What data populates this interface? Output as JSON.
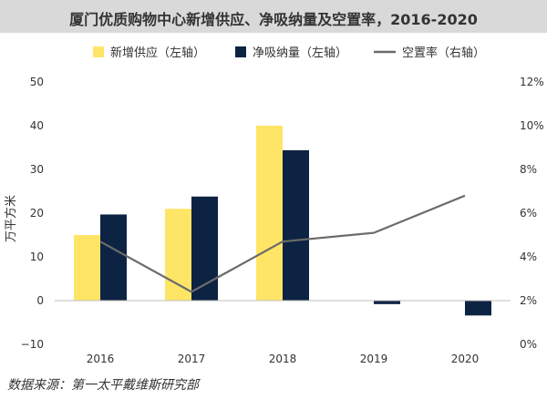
{
  "page": {
    "title": "厦门优质购物中心新增供应、净吸纳量及空置率，2016-2020",
    "source": "数据来源：第一太平戴维斯研究部"
  },
  "chart_data": {
    "type": "bar",
    "title": "厦门优质购物中心新增供应、净吸纳量及空置率，2016-2020",
    "categories": [
      "2016",
      "2017",
      "2018",
      "2019",
      "2020"
    ],
    "ylabel": "万平方米",
    "ylim": [
      -10,
      50
    ],
    "y_ticks": [
      "50",
      "40",
      "30",
      "20",
      "10",
      "0",
      "−10"
    ],
    "y2lim": [
      0,
      12
    ],
    "y2_ticks": [
      "12%",
      "10%",
      "8%",
      "6%",
      "4%",
      "2%",
      "0%"
    ],
    "grid": false,
    "legend_position": "top",
    "series": [
      {
        "name": "新增供应（左轴）",
        "type": "bar",
        "axis": "left",
        "color": "#ffe566",
        "values": [
          15,
          21,
          40,
          0,
          0
        ]
      },
      {
        "name": "净吸纳量（左轴）",
        "type": "bar",
        "axis": "left",
        "color": "#0d2343",
        "values": [
          19.7,
          23.8,
          34.4,
          -0.8,
          -3.4
        ]
      },
      {
        "name": "空置率（右轴）",
        "type": "line",
        "axis": "right",
        "color": "#6b6b6b",
        "values": [
          4.7,
          2.4,
          4.7,
          5.1,
          6.8
        ]
      }
    ]
  }
}
